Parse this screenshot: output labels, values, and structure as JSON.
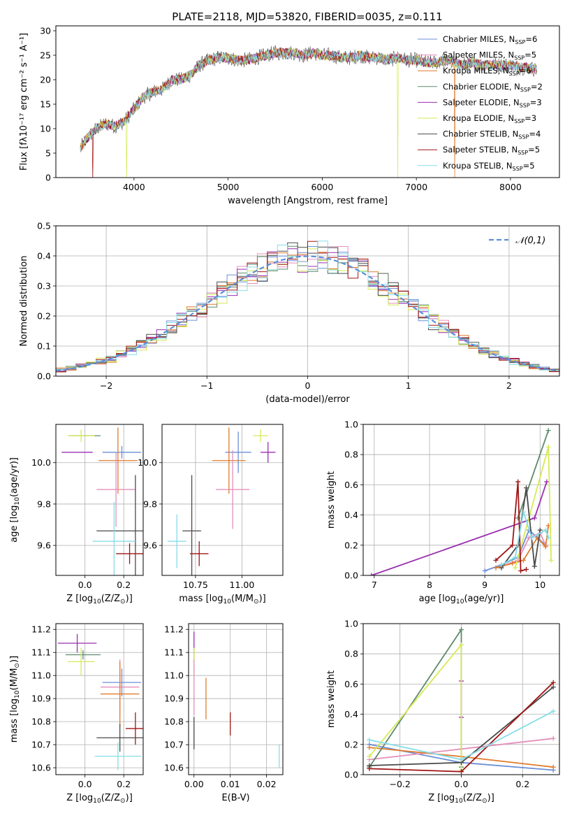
{
  "figure": {
    "title": "PLATE=2118, MJD=53820, FIBERID=0035, z=0.111"
  },
  "colors": {
    "Chabrier MILES": "#6a8fd8",
    "Salpeter MILES": "#e48fba",
    "Kroupa MILES": "#e07b2c",
    "Chabrier ELODIE": "#5d8a6c",
    "Salpeter ELODIE": "#9a2fb0",
    "Kroupa ELODIE": "#d6ea55",
    "Chabrier STELIB": "#4a4a4a",
    "Salpeter STELIB": "#a01515",
    "Kroupa STELIB": "#86dde8",
    "normal_curve": "#5b8fd6",
    "grid": "#b0b0b0"
  },
  "chart_data": [
    {
      "id": "spectrum",
      "type": "line",
      "title": "PLATE=2118, MJD=53820, FIBERID=0035, z=0.111",
      "xlabel": "wavelength [Angstrom, rest frame]",
      "ylabel": "Flux [fλ10⁻¹⁷ erg cm⁻² s⁻¹ A⁻¹]",
      "xlim": [
        3170,
        8520
      ],
      "ylim": [
        0,
        31
      ],
      "xticks": [
        4000,
        5000,
        6000,
        7000,
        8000
      ],
      "yticks": [
        0,
        5,
        10,
        15,
        20,
        25,
        30
      ],
      "grid": false,
      "legend_position": "top-right",
      "spectrum_envelope": {
        "x": [
          3430,
          3500,
          3600,
          3700,
          3800,
          3900,
          4000,
          4100,
          4200,
          4300,
          4400,
          4500,
          4600,
          4700,
          4800,
          4900,
          5000,
          5100,
          5200,
          5300,
          5400,
          5500,
          5600,
          5700,
          5800,
          5900,
          6000,
          6100,
          6200,
          6300,
          6400,
          6500,
          6600,
          6700,
          6800,
          6900,
          7000,
          7100,
          7200,
          7300,
          7400,
          7500,
          7600,
          7700,
          7800,
          7900,
          8000,
          8100,
          8200,
          8280
        ],
        "y": [
          6,
          8,
          10,
          11,
          10.5,
          11.5,
          14,
          16.5,
          17.5,
          18,
          20,
          20,
          21,
          23,
          24,
          24.5,
          24.5,
          24,
          24,
          24.5,
          25,
          25.5,
          25.5,
          25.5,
          25,
          25.5,
          25,
          25,
          24.5,
          24.5,
          25,
          24.5,
          24.5,
          24,
          24.5,
          24,
          24,
          23.5,
          23.5,
          24,
          23.5,
          23,
          23.5,
          23,
          23,
          23,
          23,
          22.5,
          22.5,
          22
        ]
      },
      "series": [
        {
          "name": "Chabrier MILES, N$_{SSP}$=6"
        },
        {
          "name": "Salpeter MILES, N$_{SSP}$=5"
        },
        {
          "name": "Kroupa MILES, N$_{SSP}$=6"
        },
        {
          "name": "Chabrier ELODIE, N$_{SSP}$=2"
        },
        {
          "name": "Salpeter ELODIE, N$_{SSP}$=3"
        },
        {
          "name": "Kroupa ELODIE, N$_{SSP}$=3"
        },
        {
          "name": "Chabrier STELIB, N$_{SSP}$=4"
        },
        {
          "name": "Salpeter STELIB, N$_{SSP}$=5"
        },
        {
          "name": "Kroupa STELIB, N$_{SSP}$=5"
        }
      ],
      "drops": [
        {
          "series": "Kroupa ELODIE, N$_{SSP}$=3",
          "x": 3920
        },
        {
          "series": "Kroupa ELODIE, N$_{SSP}$=3",
          "x": 6800
        },
        {
          "series": "Kroupa MILES, N$_{SSP}$=6",
          "x": 7410
        },
        {
          "series": "Salpeter STELIB, N$_{SSP}$=5",
          "x": 3560
        }
      ]
    },
    {
      "id": "residuals",
      "type": "histogram",
      "xlabel": "(data-model)/error",
      "ylabel": "Normed distribution",
      "xlim": [
        -2.5,
        2.5
      ],
      "ylim": [
        0,
        0.5
      ],
      "xticks": [
        -2,
        -1,
        0,
        1,
        2
      ],
      "yticks": [
        0.0,
        0.1,
        0.2,
        0.3,
        0.4,
        0.5
      ],
      "grid": true,
      "bin_width": 0.1,
      "legend": [
        "$\\mathcal{N}(0,1)$"
      ],
      "legend_position": "top-right",
      "curve": "normal pdf, mean 0, sigma 1"
    },
    {
      "id": "age-vs-Z",
      "type": "errorbar",
      "xlabel": "Z [log$_{10}$(Z/Z$_\\odot$)]",
      "ylabel": "age  [log$_{10}$(age/yr)]",
      "xlim": [
        -0.15,
        0.3
      ],
      "ylim": [
        9.455,
        10.185
      ],
      "xticks": [
        0.0,
        0.2
      ],
      "yticks": [
        9.6,
        9.8,
        10.0
      ],
      "grid": true,
      "points": [
        {
          "series": "Chabrier ELODIE",
          "x": 0.0,
          "y": 10.13,
          "xerr": 0.08,
          "yerr": 0.0
        },
        {
          "series": "Kroupa ELODIE",
          "x": -0.02,
          "y": 10.13,
          "xerr": 0.07,
          "yerr": 0.03
        },
        {
          "series": "Salpeter ELODIE",
          "x": -0.04,
          "y": 10.05,
          "xerr": 0.08,
          "yerr": 0.0
        },
        {
          "series": "Chabrier MILES",
          "x": 0.19,
          "y": 10.05,
          "xerr": 0.1,
          "yerr": 0.03
        },
        {
          "series": "Kroupa MILES",
          "x": 0.17,
          "y": 10.01,
          "xerr": 0.1,
          "yerr": 0.16
        },
        {
          "series": "Salpeter MILES",
          "x": 0.16,
          "y": 9.87,
          "xerr": 0.1,
          "yerr": 0.18
        },
        {
          "series": "Chabrier STELIB",
          "x": 0.26,
          "y": 9.67,
          "xerr": 0.2,
          "yerr": 0.27
        },
        {
          "series": "Kroupa STELIB",
          "x": 0.15,
          "y": 9.62,
          "xerr": 0.11,
          "yerr": 0.19
        },
        {
          "series": "Salpeter STELIB",
          "x": 0.23,
          "y": 9.56,
          "xerr": 0.07,
          "yerr": 0.05
        }
      ]
    },
    {
      "id": "age-vs-mass",
      "type": "errorbar",
      "xlabel": "mass [log$_{10}$(M/M$_\\odot$)]",
      "ylabel": "",
      "xlim": [
        10.57,
        11.22
      ],
      "ylim": [
        9.455,
        10.185
      ],
      "xticks": [
        10.75,
        11.0
      ],
      "yticks": [
        9.6,
        9.8,
        10.0
      ],
      "grid": true,
      "points": [
        {
          "series": "Kroupa ELODIE",
          "x": 11.1,
          "y": 10.13,
          "xerr": 0.04,
          "yerr": 0.03
        },
        {
          "series": "Salpeter ELODIE",
          "x": 11.14,
          "y": 10.05,
          "xerr": 0.04,
          "yerr": 0.05
        },
        {
          "series": "Chabrier MILES",
          "x": 10.98,
          "y": 10.05,
          "xerr": 0.07,
          "yerr": 0.1
        },
        {
          "series": "Kroupa MILES",
          "x": 10.93,
          "y": 10.01,
          "xerr": 0.09,
          "yerr": 0.16
        },
        {
          "series": "Salpeter MILES",
          "x": 10.95,
          "y": 9.87,
          "xerr": 0.09,
          "yerr": 0.19
        },
        {
          "series": "Chabrier STELIB",
          "x": 10.73,
          "y": 9.67,
          "xerr": 0.05,
          "yerr": 0.27
        },
        {
          "series": "Salpeter STELIB",
          "x": 10.77,
          "y": 9.56,
          "xerr": 0.05,
          "yerr": 0.06
        },
        {
          "series": "Kroupa STELIB",
          "x": 10.65,
          "y": 9.62,
          "xerr": 0.05,
          "yerr": 0.13
        }
      ]
    },
    {
      "id": "mass-weight-vs-age",
      "type": "line",
      "xlabel": "age  [log$_{10}$(age/yr)]",
      "ylabel": "mass weight",
      "xlim": [
        6.8,
        10.35
      ],
      "ylim": [
        0,
        1
      ],
      "xticks": [
        7,
        8,
        9,
        10
      ],
      "yticks": [
        0.0,
        0.2,
        0.4,
        0.6,
        0.8,
        1.0
      ],
      "grid": true,
      "series": [
        {
          "name": "Chabrier MILES",
          "x": [
            9.0,
            9.3,
            9.6,
            9.8,
            10.1
          ],
          "y": [
            0.03,
            0.07,
            0.12,
            0.3,
            0.2
          ]
        },
        {
          "name": "Salpeter MILES",
          "x": [
            9.3,
            9.6,
            9.8,
            10.0,
            10.1
          ],
          "y": [
            0.06,
            0.1,
            0.25,
            0.28,
            0.2
          ]
        },
        {
          "name": "Kroupa MILES",
          "x": [
            9.2,
            9.5,
            9.7,
            9.95,
            10.1,
            10.15
          ],
          "y": [
            0.05,
            0.08,
            0.1,
            0.25,
            0.19,
            0.33
          ]
        },
        {
          "name": "Chabrier ELODIE",
          "x": [
            9.6,
            10.15
          ],
          "y": [
            0.38,
            0.96
          ]
        },
        {
          "name": "Salpeter ELODIE",
          "x": [
            6.95,
            9.9,
            10.12
          ],
          "y": [
            0.0,
            0.38,
            0.62
          ]
        },
        {
          "name": "Kroupa ELODIE",
          "x": [
            9.55,
            10.15,
            10.2
          ],
          "y": [
            0.05,
            0.85,
            0.1
          ]
        },
        {
          "name": "Chabrier STELIB",
          "x": [
            9.3,
            9.6,
            9.75,
            9.9,
            10.0
          ],
          "y": [
            0.05,
            0.2,
            0.58,
            0.06,
            0.3
          ]
        },
        {
          "name": "Salpeter STELIB",
          "x": [
            9.2,
            9.5,
            9.6,
            9.65,
            9.75
          ],
          "y": [
            0.1,
            0.2,
            0.62,
            0.03,
            0.04
          ]
        },
        {
          "name": "Kroupa STELIB",
          "x": [
            9.3,
            9.55,
            9.7,
            9.85,
            10.1,
            10.15
          ],
          "y": [
            0.07,
            0.12,
            0.42,
            0.25,
            0.3,
            0.25
          ]
        }
      ]
    },
    {
      "id": "mass-vs-Z",
      "type": "errorbar",
      "xlabel": "Z [log$_{10}$(Z/Z$_\\odot$)]",
      "ylabel": "mass [log$_{10}$(M/M$_\\odot$)]",
      "xlim": [
        -0.15,
        0.3
      ],
      "ylim": [
        10.57,
        11.225
      ],
      "xticks": [
        0.0,
        0.2
      ],
      "yticks": [
        10.6,
        10.7,
        10.8,
        10.9,
        11.0,
        11.1,
        11.2
      ],
      "grid": true,
      "points": [
        {
          "series": "Salpeter ELODIE",
          "x": -0.04,
          "y": 11.14,
          "xerr": 0.1,
          "yerr": 0.04
        },
        {
          "series": "Chabrier ELODIE",
          "x": -0.01,
          "y": 11.09,
          "xerr": 0.09,
          "yerr": 0.02
        },
        {
          "series": "Kroupa ELODIE",
          "x": -0.02,
          "y": 11.06,
          "xerr": 0.07,
          "yerr": 0.06
        },
        {
          "series": "Chabrier MILES",
          "x": 0.19,
          "y": 10.97,
          "xerr": 0.1,
          "yerr": 0.06
        },
        {
          "series": "Salpeter MILES",
          "x": 0.18,
          "y": 10.95,
          "xerr": 0.1,
          "yerr": 0.12
        },
        {
          "series": "Kroupa MILES",
          "x": 0.18,
          "y": 10.92,
          "xerr": 0.1,
          "yerr": 0.14
        },
        {
          "series": "Salpeter STELIB",
          "x": 0.26,
          "y": 10.77,
          "xerr": 0.05,
          "yerr": 0.07
        },
        {
          "series": "Chabrier STELIB",
          "x": 0.18,
          "y": 10.73,
          "xerr": 0.12,
          "yerr": 0.06
        },
        {
          "series": "Kroupa STELIB",
          "x": 0.17,
          "y": 10.65,
          "xerr": 0.12,
          "yerr": 0.06
        }
      ]
    },
    {
      "id": "mass-vs-EBV",
      "type": "errorbar",
      "xlabel": "E(B-V)",
      "ylabel": "",
      "xlim": [
        -0.0015,
        0.0245
      ],
      "ylim": [
        10.57,
        11.225
      ],
      "xticks": [
        0.0,
        0.01,
        0.02
      ],
      "xticklabels": [
        "0.00",
        "0.01",
        "0.02"
      ],
      "yticks": [
        10.6,
        10.7,
        10.8,
        10.9,
        11.0,
        11.1,
        11.2
      ],
      "grid": true,
      "points": [
        {
          "series": "Salpeter ELODIE",
          "x": 0.0,
          "y": 11.14,
          "xerr": 0,
          "yerr": 0.05
        },
        {
          "series": "Chabrier ELODIE",
          "x": 0.0,
          "y": 11.09,
          "xerr": 0,
          "yerr": 0.03
        },
        {
          "series": "Kroupa ELODIE",
          "x": 0.0,
          "y": 11.06,
          "xerr": 0,
          "yerr": 0.06
        },
        {
          "series": "Salpeter MILES",
          "x": 0.0,
          "y": 10.95,
          "xerr": 0,
          "yerr": 0.12
        },
        {
          "series": "Kroupa MILES",
          "x": 0.0033,
          "y": 10.9,
          "xerr": 0,
          "yerr": 0.09
        },
        {
          "series": "Salpeter STELIB",
          "x": 0.01,
          "y": 10.79,
          "xerr": 0,
          "yerr": 0.05
        },
        {
          "series": "Chabrier STELIB",
          "x": 0.0,
          "y": 10.75,
          "xerr": 0,
          "yerr": 0.07
        },
        {
          "series": "Kroupa STELIB",
          "x": 0.0235,
          "y": 10.65,
          "xerr": 0,
          "yerr": 0.05
        }
      ]
    },
    {
      "id": "mass-weight-vs-Z",
      "type": "line",
      "xlabel": "Z [log$_{10}$(Z/Z$_\\odot$)]",
      "ylabel": "mass weight",
      "xlim": [
        -0.32,
        0.32
      ],
      "ylim": [
        0,
        1
      ],
      "xticks": [
        -0.2,
        0.0,
        0.2
      ],
      "yticks": [
        0.0,
        0.2,
        0.4,
        0.6,
        0.8,
        1.0
      ],
      "grid": true,
      "series": [
        {
          "name": "Chabrier MILES",
          "x": [
            -0.3,
            0.0,
            0.3
          ],
          "y": [
            0.2,
            0.08,
            0.03
          ]
        },
        {
          "name": "Salpeter MILES",
          "x": [
            -0.3,
            0.0,
            0.3
          ],
          "y": [
            0.1,
            0.17,
            0.24
          ]
        },
        {
          "name": "Kroupa MILES",
          "x": [
            -0.3,
            0.0,
            0.3
          ],
          "y": [
            0.18,
            0.12,
            0.05
          ]
        },
        {
          "name": "Chabrier ELODIE",
          "x": [
            -0.3,
            0.0,
            0.0
          ],
          "y": [
            0.05,
            0.96,
            0.05
          ]
        },
        {
          "name": "Salpeter ELODIE",
          "x": [
            0.0,
            0.0
          ],
          "y": [
            0.62,
            0.38
          ]
        },
        {
          "name": "Kroupa ELODIE",
          "x": [
            -0.3,
            0.0,
            0.0
          ],
          "y": [
            0.12,
            0.86,
            0.03
          ]
        },
        {
          "name": "Chabrier STELIB",
          "x": [
            -0.3,
            0.0,
            0.3
          ],
          "y": [
            0.06,
            0.08,
            0.58
          ]
        },
        {
          "name": "Salpeter STELIB",
          "x": [
            -0.3,
            0.0,
            0.3
          ],
          "y": [
            0.04,
            0.02,
            0.61
          ]
        },
        {
          "name": "Kroupa STELIB",
          "x": [
            -0.3,
            0.0,
            0.3
          ],
          "y": [
            0.23,
            0.1,
            0.42
          ]
        }
      ]
    }
  ]
}
